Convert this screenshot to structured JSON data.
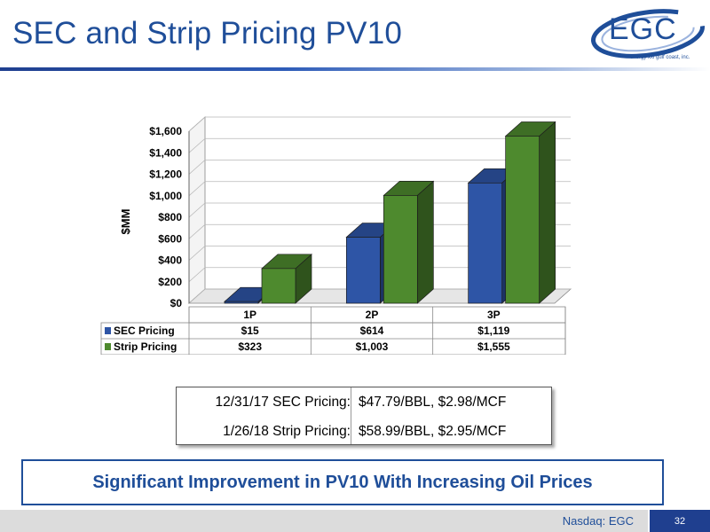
{
  "slide": {
    "title": "SEC and Strip Pricing PV10",
    "page_number": "32",
    "footer_text": "Nasdaq: EGC"
  },
  "logo": {
    "text": "EGC",
    "tagline": "energy xxi gulf coast, inc."
  },
  "chart_data": {
    "type": "bar",
    "categories": [
      "1P",
      "2P",
      "3P"
    ],
    "series": [
      {
        "name": "SEC Pricing",
        "values": [
          15,
          614,
          1119
        ],
        "labels": [
          "$15",
          "$614",
          "$1,119"
        ],
        "color": "#2e55a6"
      },
      {
        "name": "Strip Pricing",
        "values": [
          323,
          1003,
          1555
        ],
        "labels": [
          "$323",
          "$1,003",
          "$1,555"
        ],
        "color": "#4e8a2e"
      }
    ],
    "ylabel": "$MM",
    "ylim": [
      0,
      1600
    ],
    "yticks": [
      0,
      200,
      400,
      600,
      800,
      1000,
      1200,
      1400,
      1600
    ],
    "ytick_labels": [
      "$0",
      "$200",
      "$400",
      "$600",
      "$800",
      "$1,000",
      "$1,200",
      "$1,400",
      "$1,600"
    ],
    "grid": true,
    "legend": "data-table"
  },
  "pricing_table": {
    "rows": [
      {
        "label": "12/31/17 SEC Pricing:",
        "value": "$47.79/BBL, $2.98/MCF"
      },
      {
        "label": "1/26/18 Strip Pricing:",
        "value": "$58.99/BBL, $2.95/MCF"
      }
    ]
  },
  "banner": {
    "text": "Significant Improvement in PV10 With Increasing Oil Prices"
  }
}
